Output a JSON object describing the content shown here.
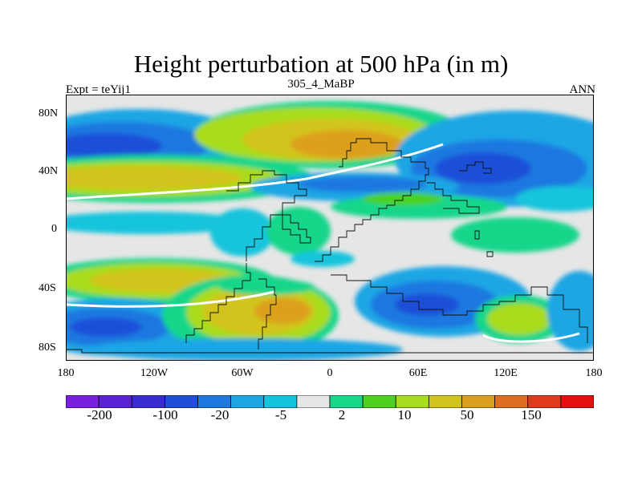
{
  "title": "Height perturbation at 500 hPa (in m)",
  "subtitle_left": "Expt = teYij1",
  "subtitle_center": "305_4_MaBP",
  "subtitle_right": "ANN",
  "lat_labels": [
    "80N",
    "40N",
    "0",
    "40S",
    "80S"
  ],
  "lon_labels": [
    "180",
    "120W",
    "60W",
    "0",
    "60E",
    "120E",
    "180"
  ],
  "colorbar": {
    "colors": [
      "#7a1fe0",
      "#5a22d6",
      "#3a2ad2",
      "#1f4fd8",
      "#1e78e0",
      "#1ea6e4",
      "#14c4dc",
      "#e6e6e6",
      "#18d68a",
      "#4cd21e",
      "#a8dc1e",
      "#d2c41e",
      "#dca01e",
      "#dc6e1e",
      "#e03a1e",
      "#e21010"
    ],
    "labels": [
      "-200",
      "-100",
      "-20",
      "-5",
      "2",
      "10",
      "50",
      "150"
    ]
  },
  "palette": {
    "neutral": "#e6e6e6",
    "lightgreen": "#18d68a",
    "green": "#4cd21e",
    "yellowgreen": "#a8dc1e",
    "yellow": "#d2c41e",
    "orange": "#dca01e",
    "darkorange": "#dc6e1e",
    "cyan": "#14c4dc",
    "lightblue": "#1ea6e4",
    "blue": "#1e78e0",
    "darkblue": "#1f4fd8",
    "deepblue": "#3a2ad2",
    "white": "#ffffff"
  }
}
